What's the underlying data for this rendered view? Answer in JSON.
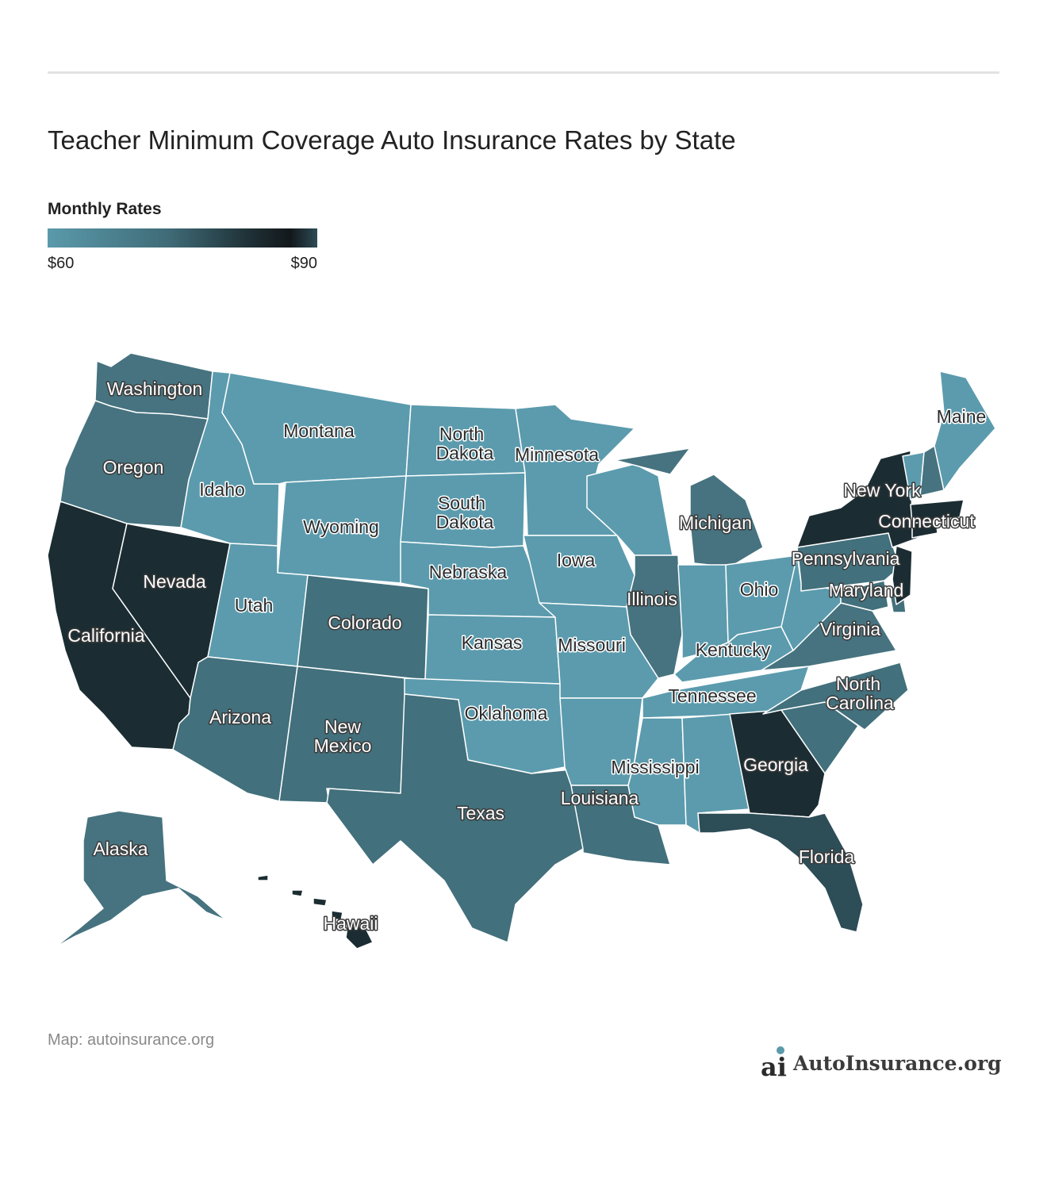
{
  "title": "Teacher Minimum Coverage Auto Insurance Rates by State",
  "legend": {
    "title": "Monthly Rates",
    "min_label": "$60",
    "max_label": "$90",
    "colors": [
      "#5a9aab",
      "#457584",
      "#2c4d56",
      "#12181b",
      "#2d4c55"
    ]
  },
  "map_data": {
    "type": "choropleth",
    "metric": "Monthly Rates",
    "range": [
      60,
      90
    ],
    "regions": [
      {
        "name": "Washington",
        "label": "Washington",
        "color": "#46737f"
      },
      {
        "name": "Oregon",
        "label": "Oregon",
        "color": "#46737f"
      },
      {
        "name": "California",
        "label": "California",
        "color": "#1b2d33"
      },
      {
        "name": "Nevada",
        "label": "Nevada",
        "color": "#1b2d33"
      },
      {
        "name": "Idaho",
        "label": "Idaho",
        "color": "#5b9bad"
      },
      {
        "name": "Montana",
        "label": "Montana",
        "color": "#5b9bad"
      },
      {
        "name": "Wyoming",
        "label": "Wyoming",
        "color": "#5b9bad"
      },
      {
        "name": "Utah",
        "label": "Utah",
        "color": "#5b9bad"
      },
      {
        "name": "Colorado",
        "label": "Colorado",
        "color": "#42707c"
      },
      {
        "name": "Arizona",
        "label": "Arizona",
        "color": "#42707c"
      },
      {
        "name": "New Mexico",
        "label": "New Mexico",
        "color": "#42707c"
      },
      {
        "name": "North Dakota",
        "label": "North Dakota",
        "color": "#5b9bad"
      },
      {
        "name": "South Dakota",
        "label": "South Dakota",
        "color": "#5b9bad"
      },
      {
        "name": "Nebraska",
        "label": "Nebraska",
        "color": "#5b9bad"
      },
      {
        "name": "Kansas",
        "label": "Kansas",
        "color": "#5b9bad"
      },
      {
        "name": "Oklahoma",
        "label": "Oklahoma",
        "color": "#5b9bad"
      },
      {
        "name": "Texas",
        "label": "Texas",
        "color": "#42707c"
      },
      {
        "name": "Minnesota",
        "label": "Minnesota",
        "color": "#5b9bad"
      },
      {
        "name": "Iowa",
        "label": "Iowa",
        "color": "#5b9bad"
      },
      {
        "name": "Missouri",
        "label": "Missouri",
        "color": "#5b9bad"
      },
      {
        "name": "Arkansas",
        "label": "",
        "color": "#5b9bad"
      },
      {
        "name": "Louisiana",
        "label": "Louisiana",
        "color": "#42707c"
      },
      {
        "name": "Wisconsin",
        "label": "",
        "color": "#5b9bad"
      },
      {
        "name": "Illinois",
        "label": "Illinois",
        "color": "#46737f"
      },
      {
        "name": "Michigan",
        "label": "Michigan",
        "color": "#46737f"
      },
      {
        "name": "Indiana",
        "label": "",
        "color": "#5b9bad"
      },
      {
        "name": "Ohio",
        "label": "Ohio",
        "color": "#5b9bad"
      },
      {
        "name": "Kentucky",
        "label": "Kentucky",
        "color": "#5b9bad"
      },
      {
        "name": "Tennessee",
        "label": "Tennessee",
        "color": "#5b9bad"
      },
      {
        "name": "Mississippi",
        "label": "Mississippi",
        "color": "#5b9bad"
      },
      {
        "name": "Alabama",
        "label": "",
        "color": "#5b9bad"
      },
      {
        "name": "Georgia",
        "label": "Georgia",
        "color": "#1b2d33"
      },
      {
        "name": "Florida",
        "label": "Florida",
        "color": "#2d4d57"
      },
      {
        "name": "South Carolina",
        "label": "",
        "color": "#42707c"
      },
      {
        "name": "North Carolina",
        "label": "North Carolina",
        "color": "#42707c"
      },
      {
        "name": "Virginia",
        "label": "Virginia",
        "color": "#46737f"
      },
      {
        "name": "West Virginia",
        "label": "",
        "color": "#5b9bad"
      },
      {
        "name": "Pennsylvania",
        "label": "Pennsylvania",
        "color": "#42707c"
      },
      {
        "name": "Maryland",
        "label": "Maryland",
        "color": "#42707c"
      },
      {
        "name": "Delaware",
        "label": "",
        "color": "#42707c"
      },
      {
        "name": "New Jersey",
        "label": "",
        "color": "#1b2d33"
      },
      {
        "name": "New York",
        "label": "New York",
        "color": "#1b2d33"
      },
      {
        "name": "Connecticut",
        "label": "Connecticut",
        "color": "#1b2d33"
      },
      {
        "name": "Massachusetts",
        "label": "",
        "color": "#1b2d33"
      },
      {
        "name": "Vermont",
        "label": "",
        "color": "#5b9bad"
      },
      {
        "name": "New Hampshire",
        "label": "",
        "color": "#46737f"
      },
      {
        "name": "Maine",
        "label": "Maine",
        "color": "#5b9bad"
      },
      {
        "name": "Alaska",
        "label": "Alaska",
        "color": "#46737f"
      },
      {
        "name": "Hawaii",
        "label": "Hawaii",
        "color": "#1b2d33"
      }
    ]
  },
  "source": "Map: autoinsurance.org",
  "brand": {
    "name": "AutoInsurance.org",
    "icon": "autoinsurance-logo-icon",
    "logo_letters": "ai"
  }
}
